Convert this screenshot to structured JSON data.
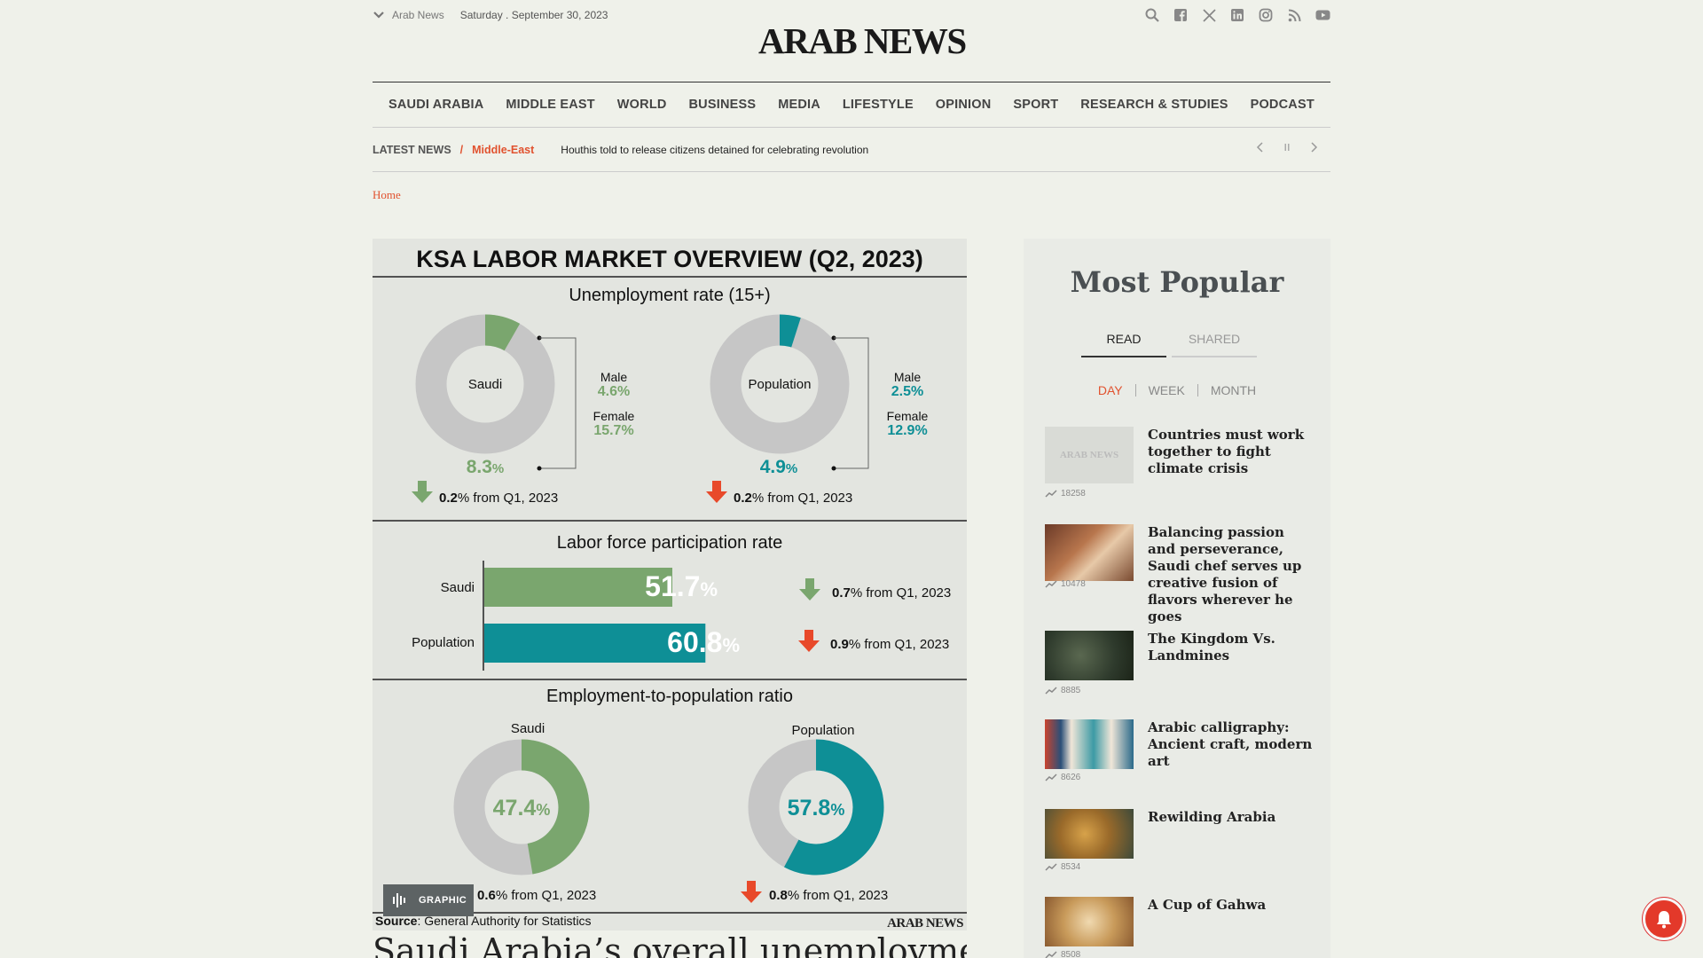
{
  "topbar": {
    "site": "Arab News",
    "date": "Saturday . September 30, 2023",
    "icons": [
      "search-icon",
      "facebook-icon",
      "x-icon",
      "linkedin-icon",
      "instagram-icon",
      "rss-icon",
      "youtube-icon"
    ]
  },
  "logo": "ARAB NEWS",
  "nav": [
    "SAUDI ARABIA",
    "MIDDLE EAST",
    "WORLD",
    "BUSINESS",
    "MEDIA",
    "LIFESTYLE",
    "OPINION",
    "SPORT",
    "RESEARCH & STUDIES",
    "PODCAST"
  ],
  "latest": {
    "label": "LATEST NEWS",
    "slash": "/",
    "category": "Middle-East",
    "headline": "Houthis told to release citizens detained for celebrating revolution"
  },
  "breadcrumb": "Home",
  "infographic": {
    "title": "KSA LABOR MARKET OVERVIEW (Q2, 2023)",
    "section1": {
      "title": "Unemployment rate (15+)",
      "saudi": {
        "label": "Saudi",
        "value": "8.3",
        "unit": "%",
        "male_label": "Male",
        "male": "4.6%",
        "female_label": "Female",
        "female": "15.7%",
        "change": "0.2",
        "change_suffix": "% from Q1, 2023"
      },
      "population": {
        "label": "Population",
        "value": "4.9",
        "unit": "%",
        "male_label": "Male",
        "male": "2.5%",
        "female_label": "Female",
        "female": "12.9%",
        "change": "0.2",
        "change_suffix": "% from Q1, 2023"
      }
    },
    "section2": {
      "title": "Labor force participation rate",
      "saudi": {
        "label": "Saudi",
        "value": "51.7",
        "unit": "%",
        "change": "0.7",
        "change_suffix": "% from Q1, 2023"
      },
      "population": {
        "label": "Population",
        "value": "60.8",
        "unit": "%",
        "change": "0.9",
        "change_suffix": "% from Q1, 2023"
      }
    },
    "section3": {
      "title": "Employment-to-population ratio",
      "saudi": {
        "label": "Saudi",
        "value": "47.4",
        "unit": "%",
        "change": "0.6",
        "change_suffix": "% from Q1, 2023"
      },
      "population": {
        "label": "Population",
        "value": "57.8",
        "unit": "%",
        "change": "0.8",
        "change_suffix": "% from Q1, 2023"
      }
    },
    "source_label": "Source",
    "source": ": General Authority for Statistics",
    "footer_logo": "ARAB NEWS",
    "badge": "GRAPHIC",
    "colors": {
      "green": "#7aa66e",
      "teal": "#0e8f96",
      "gray": "#c6c6c6",
      "red": "#e8492a"
    }
  },
  "article_title": "Saudi Arabia’s overall unemployment",
  "sidebar": {
    "title": "Most Popular",
    "tabs": [
      "READ",
      "SHARED"
    ],
    "periods": [
      "DAY",
      "WEEK",
      "MONTH"
    ],
    "items": [
      {
        "title": "Countries must work together to fight climate crisis",
        "count": "18258",
        "thumb": "ARAB NEWS"
      },
      {
        "title": "Balancing passion and perseverance, Saudi chef serves up creative fusion of flavors wherever he goes",
        "count": "10478"
      },
      {
        "title": "The Kingdom Vs. Landmines",
        "count": "8885"
      },
      {
        "title": "Arabic calligraphy: Ancient craft, modern art",
        "count": "8626"
      },
      {
        "title": "Rewilding Arabia",
        "count": "8534"
      },
      {
        "title": "A Cup of Gahwa",
        "count": "8508"
      }
    ]
  }
}
